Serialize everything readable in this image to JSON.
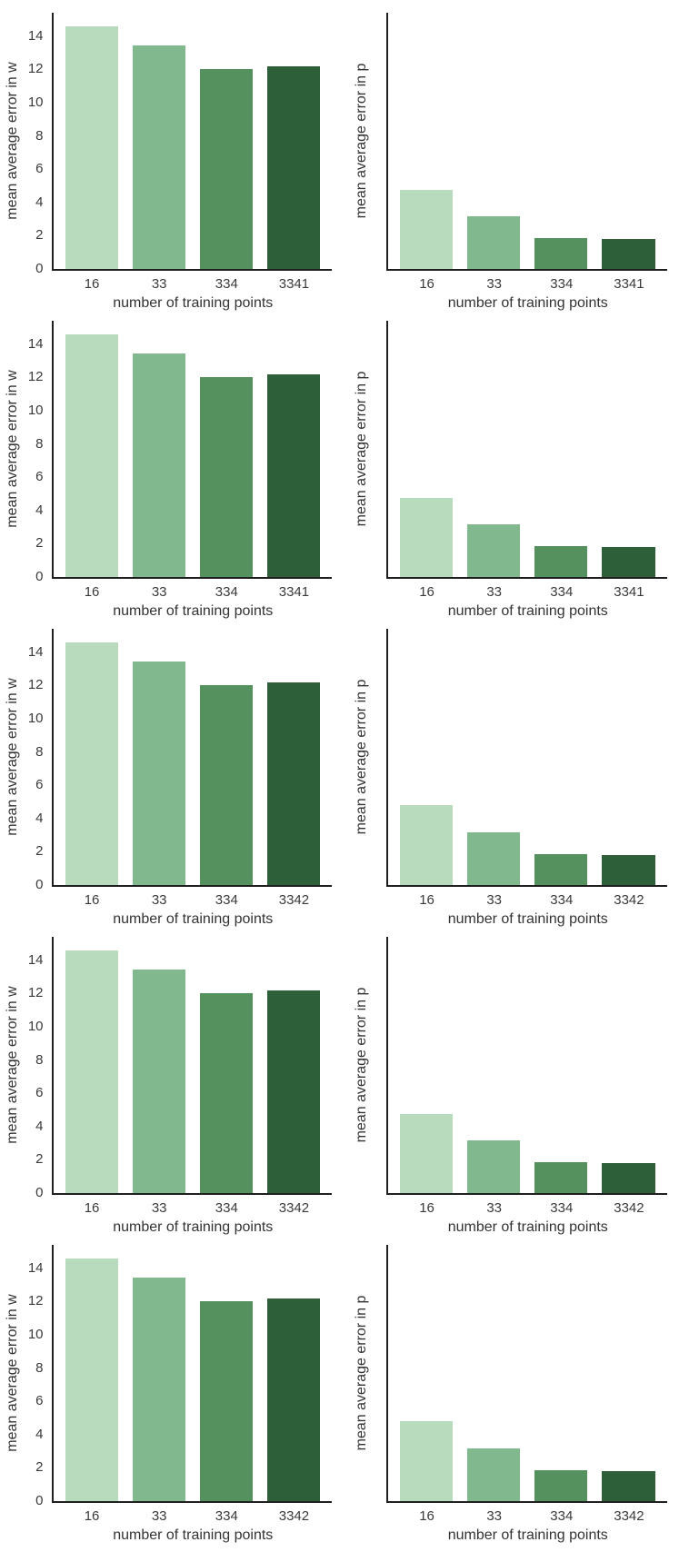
{
  "figure": {
    "background": "#ffffff",
    "spine_color": "#1f1f1f",
    "text_color": "#333333",
    "tick_color": "#3a3a3a",
    "bar_colors": [
      "#b9dbbd",
      "#82b88d",
      "#54915f",
      "#2d6038"
    ],
    "grid": false,
    "layout": "5 rows x 2 columns of bar subplots"
  },
  "chart_data": [
    {
      "id": "row1-w",
      "type": "bar",
      "row": 0,
      "col": 0,
      "ylabel": "mean average error in w",
      "xlabel": "number of training points",
      "categories": [
        "16",
        "33",
        "334",
        "3341"
      ],
      "values": [
        14.6,
        13.45,
        12.0,
        12.2
      ],
      "yticks": [
        0,
        2,
        4,
        6,
        8,
        10,
        12,
        14
      ],
      "ylim": [
        0,
        15.4
      ]
    },
    {
      "id": "row1-p",
      "type": "bar",
      "row": 0,
      "col": 1,
      "ylabel": "mean average error in p",
      "xlabel": "number of training points",
      "categories": [
        "16",
        "33",
        "334",
        "3341"
      ],
      "values": [
        4.75,
        3.15,
        1.85,
        1.8
      ],
      "yticks": [],
      "ylim": [
        0,
        15.4
      ]
    },
    {
      "id": "row2-w",
      "type": "bar",
      "row": 1,
      "col": 0,
      "ylabel": "mean average error in w",
      "xlabel": "number of training points",
      "categories": [
        "16",
        "33",
        "334",
        "3341"
      ],
      "values": [
        14.6,
        13.45,
        12.0,
        12.2
      ],
      "yticks": [
        0,
        2,
        4,
        6,
        8,
        10,
        12,
        14
      ],
      "ylim": [
        0,
        15.4
      ]
    },
    {
      "id": "row2-p",
      "type": "bar",
      "row": 1,
      "col": 1,
      "ylabel": "mean average error in p",
      "xlabel": "number of training points",
      "categories": [
        "16",
        "33",
        "334",
        "3341"
      ],
      "values": [
        4.75,
        3.15,
        1.85,
        1.8
      ],
      "yticks": [],
      "ylim": [
        0,
        15.4
      ]
    },
    {
      "id": "row3-w",
      "type": "bar",
      "row": 2,
      "col": 0,
      "ylabel": "mean average error in w",
      "xlabel": "number of training points",
      "categories": [
        "16",
        "33",
        "334",
        "3342"
      ],
      "values": [
        14.6,
        13.45,
        12.0,
        12.2
      ],
      "yticks": [
        0,
        2,
        4,
        6,
        8,
        10,
        12,
        14
      ],
      "ylim": [
        0,
        15.4
      ]
    },
    {
      "id": "row3-p",
      "type": "bar",
      "row": 2,
      "col": 1,
      "ylabel": "mean average error in p",
      "xlabel": "number of training points",
      "categories": [
        "16",
        "33",
        "334",
        "3342"
      ],
      "values": [
        4.8,
        3.18,
        1.85,
        1.8
      ],
      "yticks": [],
      "ylim": [
        0,
        15.4
      ]
    },
    {
      "id": "row4-w",
      "type": "bar",
      "row": 3,
      "col": 0,
      "ylabel": "mean average error in w",
      "xlabel": "number of training points",
      "categories": [
        "16",
        "33",
        "334",
        "3342"
      ],
      "values": [
        14.6,
        13.45,
        12.0,
        12.2
      ],
      "yticks": [
        0,
        2,
        4,
        6,
        8,
        10,
        12,
        14
      ],
      "ylim": [
        0,
        15.4
      ]
    },
    {
      "id": "row4-p",
      "type": "bar",
      "row": 3,
      "col": 1,
      "ylabel": "mean average error in p",
      "xlabel": "number of training points",
      "categories": [
        "16",
        "33",
        "334",
        "3342"
      ],
      "values": [
        4.75,
        3.15,
        1.85,
        1.8
      ],
      "yticks": [],
      "ylim": [
        0,
        15.4
      ]
    },
    {
      "id": "row5-w",
      "type": "bar",
      "row": 4,
      "col": 0,
      "ylabel": "mean average error in w",
      "xlabel": "number of training points",
      "categories": [
        "16",
        "33",
        "334",
        "3342"
      ],
      "values": [
        14.6,
        13.45,
        12.0,
        12.2
      ],
      "yticks": [
        0,
        2,
        4,
        6,
        8,
        10,
        12,
        14
      ],
      "ylim": [
        0,
        15.4
      ]
    },
    {
      "id": "row5-p",
      "type": "bar",
      "row": 4,
      "col": 1,
      "ylabel": "mean average error in p",
      "xlabel": "number of training points",
      "categories": [
        "16",
        "33",
        "334",
        "3342"
      ],
      "values": [
        4.8,
        3.15,
        1.85,
        1.8
      ],
      "yticks": [],
      "ylim": [
        0,
        15.4
      ]
    }
  ]
}
